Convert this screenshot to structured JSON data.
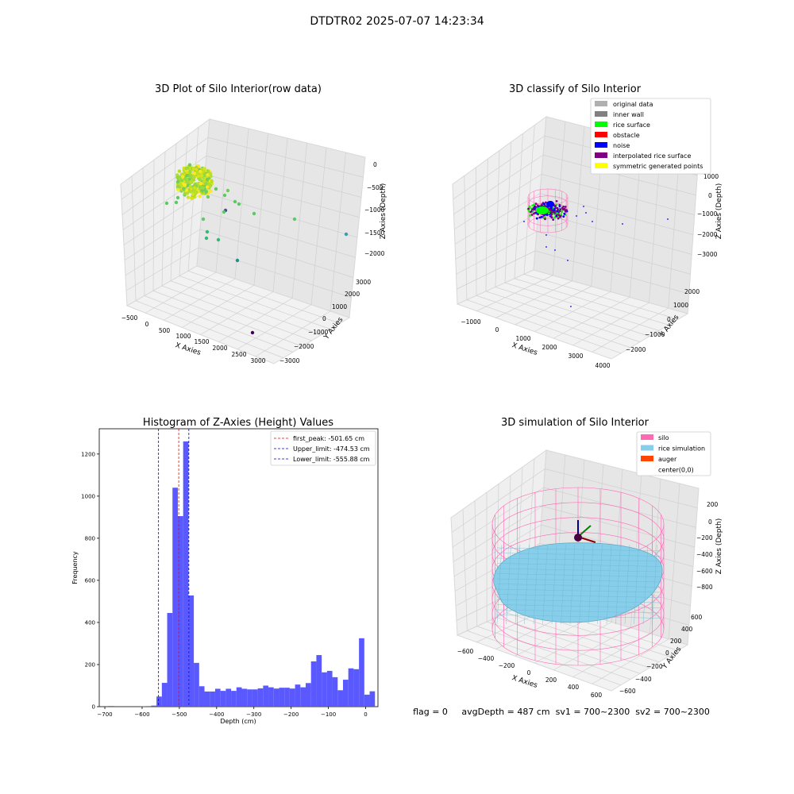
{
  "suptitle": "DTDTR02 2025-07-07 14:23:34",
  "status_line": "flag = 0     avgDepth = 487 cm  sv1 = 700~2300  sv2 = 700~2300",
  "colors": {
    "hist_bar": "#5050ff",
    "peak_line": "#ff0000",
    "limit_line": "#0000cc",
    "silo": "#ff69b4",
    "rice_sim": "#87ceeb",
    "auger": "#ff4500"
  },
  "chart_data": [
    {
      "type": "scatter",
      "projection": "3d",
      "title": "3D Plot of Silo Interior(row data)",
      "xlabel": "X Axies",
      "ylabel": "Y Axies",
      "zlabel": "Z Axies (Depth)",
      "x_ticks": [
        "−500",
        "0",
        "500",
        "1000",
        "1500",
        "2000",
        "2500",
        "3000"
      ],
      "y_ticks": [
        "−3000",
        "−2000",
        "−1000",
        "0",
        "1000",
        "2000",
        "3000"
      ],
      "z_ticks": [
        "−2000",
        "−1500",
        "−1000",
        "−500",
        "0"
      ],
      "colormap": "viridis"
    },
    {
      "type": "scatter",
      "projection": "3d",
      "title": "3D classify of Silo Interior",
      "xlabel": "X Axies",
      "ylabel": "Y Axies",
      "zlabel": "Z Axies (Depth)",
      "x_ticks": [
        "−1000",
        "0",
        "1000",
        "2000",
        "3000",
        "4000"
      ],
      "y_ticks": [
        "−2000",
        "−1000",
        "0",
        "1000",
        "2000"
      ],
      "z_ticks": [
        "−3000",
        "−2000",
        "−1000",
        "0",
        "1000"
      ],
      "legend": [
        {
          "label": "original data",
          "color": "#b0b0b0"
        },
        {
          "label": "inner wall",
          "color": "#808080"
        },
        {
          "label": "rice surface",
          "color": "#00ff00"
        },
        {
          "label": "obstacle",
          "color": "#ff0000"
        },
        {
          "label": "noise",
          "color": "#0000ff"
        },
        {
          "label": "interpolated rice surface",
          "color": "#800080"
        },
        {
          "label": "symmetric generated points",
          "color": "#ffff00"
        }
      ],
      "legend_position": "top-right"
    },
    {
      "type": "bar",
      "title": "Histogram of Z-Axies (Height) Values",
      "xlabel": "Depth (cm)",
      "ylabel": "Frequency",
      "xlim": [
        -715,
        33
      ],
      "ylim": [
        0,
        1320
      ],
      "x_ticks": [
        -700,
        -600,
        -500,
        -400,
        -300,
        -200,
        -100,
        0
      ],
      "y_ticks": [
        0,
        200,
        400,
        600,
        800,
        1000,
        1200
      ],
      "bin_width": 14.3,
      "bins_start": -690,
      "values": [
        3,
        0,
        0,
        0,
        0,
        0,
        2,
        0,
        5,
        48,
        113,
        445,
        1040,
        905,
        1260,
        528,
        208,
        97,
        72,
        72,
        85,
        75,
        85,
        75,
        92,
        85,
        82,
        82,
        87,
        100,
        92,
        86,
        90,
        90,
        86,
        105,
        92,
        112,
        215,
        245,
        163,
        170,
        140,
        78,
        128,
        182,
        178,
        325,
        57,
        73
      ],
      "vlines": [
        {
          "label": "first_peak: -501.65 cm",
          "x": -501.65,
          "color": "#ff0000"
        },
        {
          "label": "Upper_limit: -474.53 cm",
          "x": -474.53,
          "color": "#0000cc"
        },
        {
          "label": "Lower_limit: -555.88 cm",
          "x": -555.88,
          "color": "#0000cc"
        }
      ],
      "legend_position": "top-right"
    },
    {
      "type": "surface",
      "projection": "3d",
      "title": "3D simulation of Silo Interior",
      "xlabel": "X Axies",
      "ylabel": "Y Axies",
      "zlabel": "Z Axies (Depth)",
      "x_ticks": [
        "−600",
        "−400",
        "−200",
        "0",
        "200",
        "400",
        "600"
      ],
      "y_ticks": [
        "−600",
        "−400",
        "−200",
        "0",
        "200",
        "400",
        "600"
      ],
      "z_ticks": [
        "−800",
        "−600",
        "−400",
        "−200",
        "0",
        "200"
      ],
      "legend": [
        {
          "label": "silo",
          "color": "#ff69b4"
        },
        {
          "label": "rice simulation",
          "color": "#87ceeb"
        },
        {
          "label": "auger",
          "color": "#ff4500"
        },
        {
          "label": "center(0,0)",
          "color": "#ffffff"
        }
      ],
      "legend_position": "top-right"
    }
  ]
}
